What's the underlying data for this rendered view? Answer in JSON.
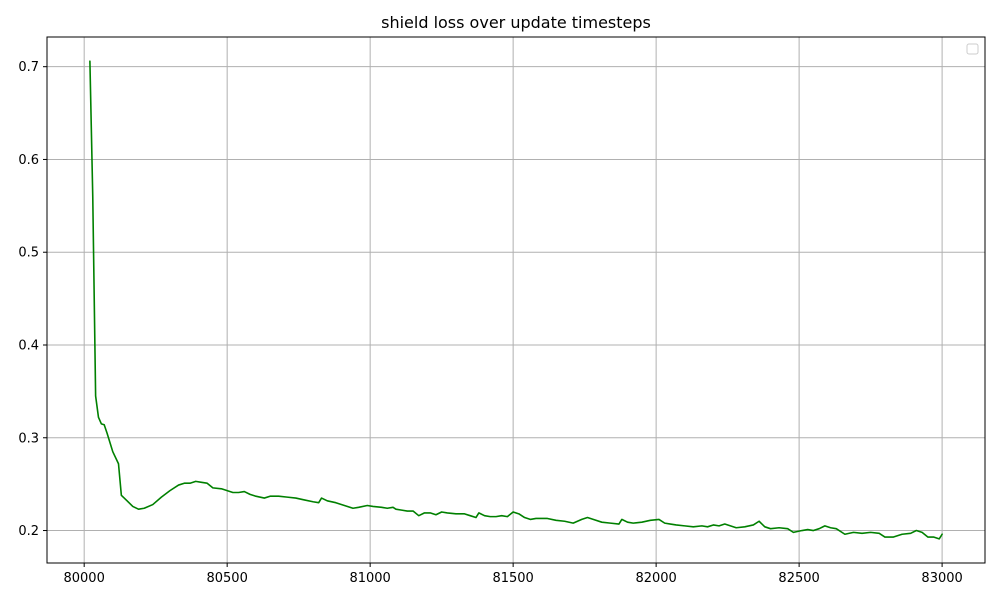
{
  "chart_data": {
    "type": "line",
    "title": "shield loss over update timesteps",
    "xlabel": "",
    "ylabel": "",
    "xlim": [
      79870,
      83150
    ],
    "ylim": [
      0.165,
      0.732
    ],
    "x_ticks": [
      80000,
      80500,
      81000,
      81500,
      82000,
      82500,
      83000
    ],
    "x_tick_labels": [
      "80000",
      "80500",
      "81000",
      "81500",
      "82000",
      "82500",
      "83000"
    ],
    "y_ticks": [
      0.2,
      0.3,
      0.4,
      0.5,
      0.6,
      0.7
    ],
    "y_tick_labels": [
      "0.2",
      "0.3",
      "0.4",
      "0.5",
      "0.6",
      "0.7"
    ],
    "grid": true,
    "legend": {
      "placement": "top-right",
      "entries": []
    },
    "series": [
      {
        "color": "#008000",
        "x": [
          80020,
          80030,
          80040,
          80050,
          80060,
          80070,
          80080,
          80100,
          80120,
          80130,
          80150,
          80170,
          80190,
          80210,
          80240,
          80270,
          80300,
          80330,
          80350,
          80370,
          80390,
          80410,
          80430,
          80450,
          80480,
          80500,
          80520,
          80540,
          80560,
          80580,
          80600,
          80630,
          80650,
          80680,
          80710,
          80740,
          80770,
          80800,
          80820,
          80830,
          80850,
          80880,
          80910,
          80940,
          80960,
          80990,
          81010,
          81040,
          81060,
          81080,
          81090,
          81110,
          81130,
          81150,
          81170,
          81190,
          81210,
          81230,
          81250,
          81270,
          81300,
          81330,
          81350,
          81370,
          81380,
          81400,
          81420,
          81440,
          81460,
          81480,
          81500,
          81520,
          81540,
          81560,
          81580,
          81600,
          81620,
          81650,
          81680,
          81710,
          81740,
          81760,
          81780,
          81810,
          81840,
          81870,
          81880,
          81900,
          81920,
          81950,
          81980,
          82010,
          82030,
          82050,
          82070,
          82100,
          82130,
          82160,
          82180,
          82200,
          82220,
          82240,
          82260,
          82280,
          82310,
          82340,
          82360,
          82380,
          82400,
          82430,
          82460,
          82480,
          82510,
          82530,
          82550,
          82570,
          82590,
          82610,
          82630,
          82660,
          82690,
          82720,
          82750,
          82780,
          82800,
          82830,
          82860,
          82890,
          82910,
          82930,
          82950,
          82970,
          82990,
          83000
        ],
        "y": [
          0.706,
          0.56,
          0.345,
          0.322,
          0.315,
          0.314,
          0.305,
          0.285,
          0.272,
          0.238,
          0.232,
          0.226,
          0.223,
          0.224,
          0.228,
          0.236,
          0.243,
          0.249,
          0.251,
          0.251,
          0.253,
          0.252,
          0.251,
          0.246,
          0.245,
          0.243,
          0.241,
          0.241,
          0.242,
          0.239,
          0.237,
          0.235,
          0.237,
          0.237,
          0.236,
          0.235,
          0.233,
          0.231,
          0.23,
          0.235,
          0.232,
          0.23,
          0.227,
          0.224,
          0.225,
          0.227,
          0.226,
          0.225,
          0.224,
          0.225,
          0.223,
          0.222,
          0.221,
          0.221,
          0.216,
          0.219,
          0.219,
          0.217,
          0.22,
          0.219,
          0.218,
          0.218,
          0.216,
          0.214,
          0.219,
          0.216,
          0.215,
          0.215,
          0.216,
          0.215,
          0.22,
          0.218,
          0.214,
          0.212,
          0.213,
          0.213,
          0.213,
          0.211,
          0.21,
          0.208,
          0.212,
          0.214,
          0.212,
          0.209,
          0.208,
          0.207,
          0.212,
          0.209,
          0.208,
          0.209,
          0.211,
          0.212,
          0.208,
          0.207,
          0.206,
          0.205,
          0.204,
          0.205,
          0.204,
          0.206,
          0.205,
          0.207,
          0.205,
          0.203,
          0.204,
          0.206,
          0.21,
          0.204,
          0.202,
          0.203,
          0.202,
          0.198,
          0.2,
          0.201,
          0.2,
          0.202,
          0.205,
          0.203,
          0.202,
          0.196,
          0.198,
          0.197,
          0.198,
          0.197,
          0.193,
          0.193,
          0.196,
          0.197,
          0.2,
          0.198,
          0.193,
          0.193,
          0.191,
          0.196
        ]
      }
    ]
  }
}
